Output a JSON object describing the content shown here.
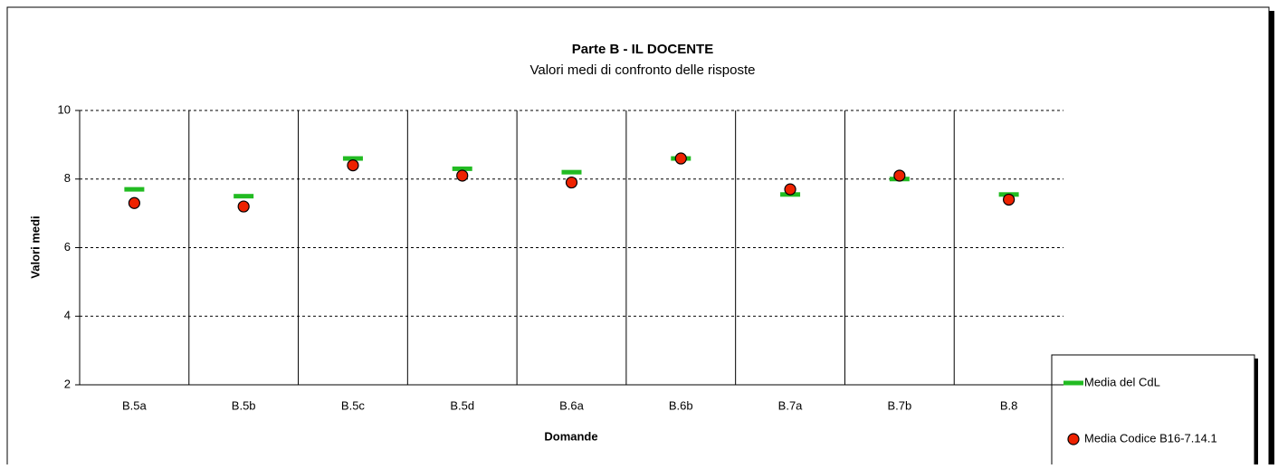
{
  "chart_data": {
    "type": "scatter",
    "title": "Parte B - IL DOCENTE",
    "subtitle": "Valori medi di confronto delle risposte",
    "y_label": "Valori medi",
    "x_label": "Domande",
    "categories": [
      "B.5a",
      "B.5b",
      "B.5c",
      "B.5d",
      "B.6a",
      "B.6b",
      "B.7a",
      "B.7b",
      "B.8"
    ],
    "series": [
      {
        "name": "Media del CdL",
        "color": "#22bb22",
        "marker": "dash",
        "values": [
          7.7,
          7.5,
          8.6,
          8.3,
          8.2,
          8.6,
          7.55,
          8.0,
          7.55
        ]
      },
      {
        "name": "Media Codice B16-7.14.1",
        "color": "#ee2200",
        "marker": "circle",
        "values": [
          7.3,
          7.2,
          8.4,
          8.1,
          7.9,
          8.6,
          7.7,
          8.1,
          7.4
        ]
      }
    ],
    "ylim": [
      2,
      10
    ],
    "yticks": [
      2,
      4,
      6,
      8,
      10
    ],
    "grid": true,
    "legend": "right"
  }
}
